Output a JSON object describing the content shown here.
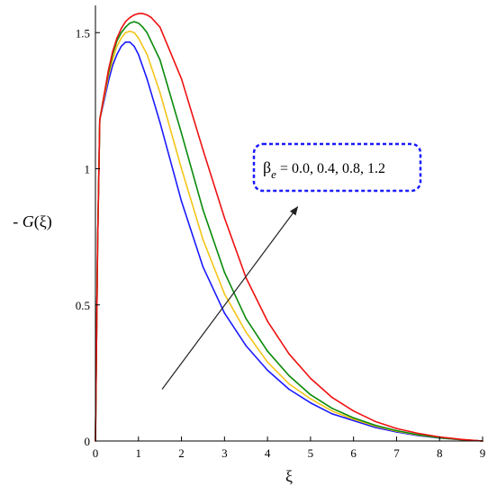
{
  "chart_data": {
    "type": "line",
    "xlabel": "ξ",
    "ylabel_prefix": "- ",
    "ylabel_func": "G",
    "ylabel_arg": "(ξ)",
    "xlim": [
      0,
      9
    ],
    "ylim": [
      0,
      1.6
    ],
    "x_ticks": [
      0,
      1,
      2,
      3,
      4,
      5,
      6,
      7,
      8,
      9
    ],
    "x_tick_labels": [
      "0",
      "1",
      "2",
      "3",
      "4",
      "5",
      "6",
      "7",
      "8",
      "9"
    ],
    "y_ticks": [
      0,
      0.5,
      1,
      1.5
    ],
    "y_tick_labels": [
      "0",
      "0.5",
      "1",
      "1.5"
    ],
    "grid": false,
    "annotation": {
      "param_symbol": "β",
      "param_subscript": "e",
      "values_text": " = 0.0, 0.4, 0.8, 1.2",
      "border_color": "#1a1aff",
      "arrow_from": [
        1.55,
        0.19
      ],
      "arrow_to": [
        4.7,
        0.86
      ]
    },
    "series": [
      {
        "color": "#1a1aff",
        "x": [
          0,
          0.05,
          0.1,
          0.2,
          0.3,
          0.4,
          0.5,
          0.6,
          0.7,
          0.8,
          0.9,
          1.0,
          1.2,
          1.5,
          2.0,
          2.5,
          3.0,
          3.5,
          4.0,
          4.5,
          5.0,
          5.5,
          6.0,
          6.5,
          7.0,
          7.5,
          8.0,
          8.5,
          9.0
        ],
        "values": [
          0,
          0.72,
          1.18,
          1.25,
          1.32,
          1.38,
          1.42,
          1.45,
          1.465,
          1.465,
          1.45,
          1.42,
          1.33,
          1.17,
          0.88,
          0.64,
          0.47,
          0.35,
          0.26,
          0.19,
          0.14,
          0.1,
          0.075,
          0.05,
          0.033,
          0.02,
          0.011,
          0.005,
          0.0
        ]
      },
      {
        "color": "#f5c518",
        "x": [
          0,
          0.05,
          0.1,
          0.2,
          0.3,
          0.4,
          0.5,
          0.6,
          0.7,
          0.8,
          0.9,
          1.0,
          1.2,
          1.5,
          2.0,
          2.5,
          3.0,
          3.5,
          4.0,
          4.5,
          5.0,
          5.5,
          6.0,
          6.5,
          7.0,
          7.5,
          8.0,
          8.5,
          9.0
        ],
        "values": [
          0,
          0.72,
          1.18,
          1.26,
          1.34,
          1.4,
          1.45,
          1.48,
          1.5,
          1.505,
          1.5,
          1.48,
          1.42,
          1.28,
          1.0,
          0.74,
          0.54,
          0.4,
          0.29,
          0.21,
          0.155,
          0.11,
          0.08,
          0.055,
          0.036,
          0.022,
          0.012,
          0.005,
          0.0
        ]
      },
      {
        "color": "#0a8a0a",
        "x": [
          0,
          0.05,
          0.1,
          0.2,
          0.3,
          0.4,
          0.5,
          0.6,
          0.7,
          0.8,
          0.9,
          1.0,
          1.1,
          1.2,
          1.5,
          2.0,
          2.5,
          3.0,
          3.5,
          4.0,
          4.5,
          5.0,
          5.5,
          6.0,
          6.5,
          7.0,
          7.5,
          8.0,
          8.5,
          9.0
        ],
        "values": [
          0,
          0.72,
          1.18,
          1.27,
          1.35,
          1.42,
          1.47,
          1.5,
          1.52,
          1.535,
          1.54,
          1.535,
          1.52,
          1.5,
          1.4,
          1.13,
          0.85,
          0.62,
          0.45,
          0.33,
          0.24,
          0.17,
          0.12,
          0.085,
          0.058,
          0.038,
          0.023,
          0.012,
          0.005,
          0.0
        ]
      },
      {
        "color": "#ee1111",
        "x": [
          0,
          0.05,
          0.1,
          0.2,
          0.3,
          0.4,
          0.5,
          0.6,
          0.7,
          0.8,
          0.9,
          1.0,
          1.1,
          1.2,
          1.3,
          1.5,
          2.0,
          2.5,
          3.0,
          3.5,
          4.0,
          4.5,
          5.0,
          5.5,
          6.0,
          6.5,
          7.0,
          7.5,
          8.0,
          8.5,
          9.0
        ],
        "values": [
          0,
          0.72,
          1.18,
          1.27,
          1.36,
          1.43,
          1.48,
          1.515,
          1.54,
          1.555,
          1.565,
          1.57,
          1.57,
          1.565,
          1.555,
          1.52,
          1.33,
          1.07,
          0.82,
          0.6,
          0.44,
          0.32,
          0.23,
          0.16,
          0.11,
          0.072,
          0.046,
          0.028,
          0.015,
          0.006,
          0.0
        ]
      }
    ]
  }
}
